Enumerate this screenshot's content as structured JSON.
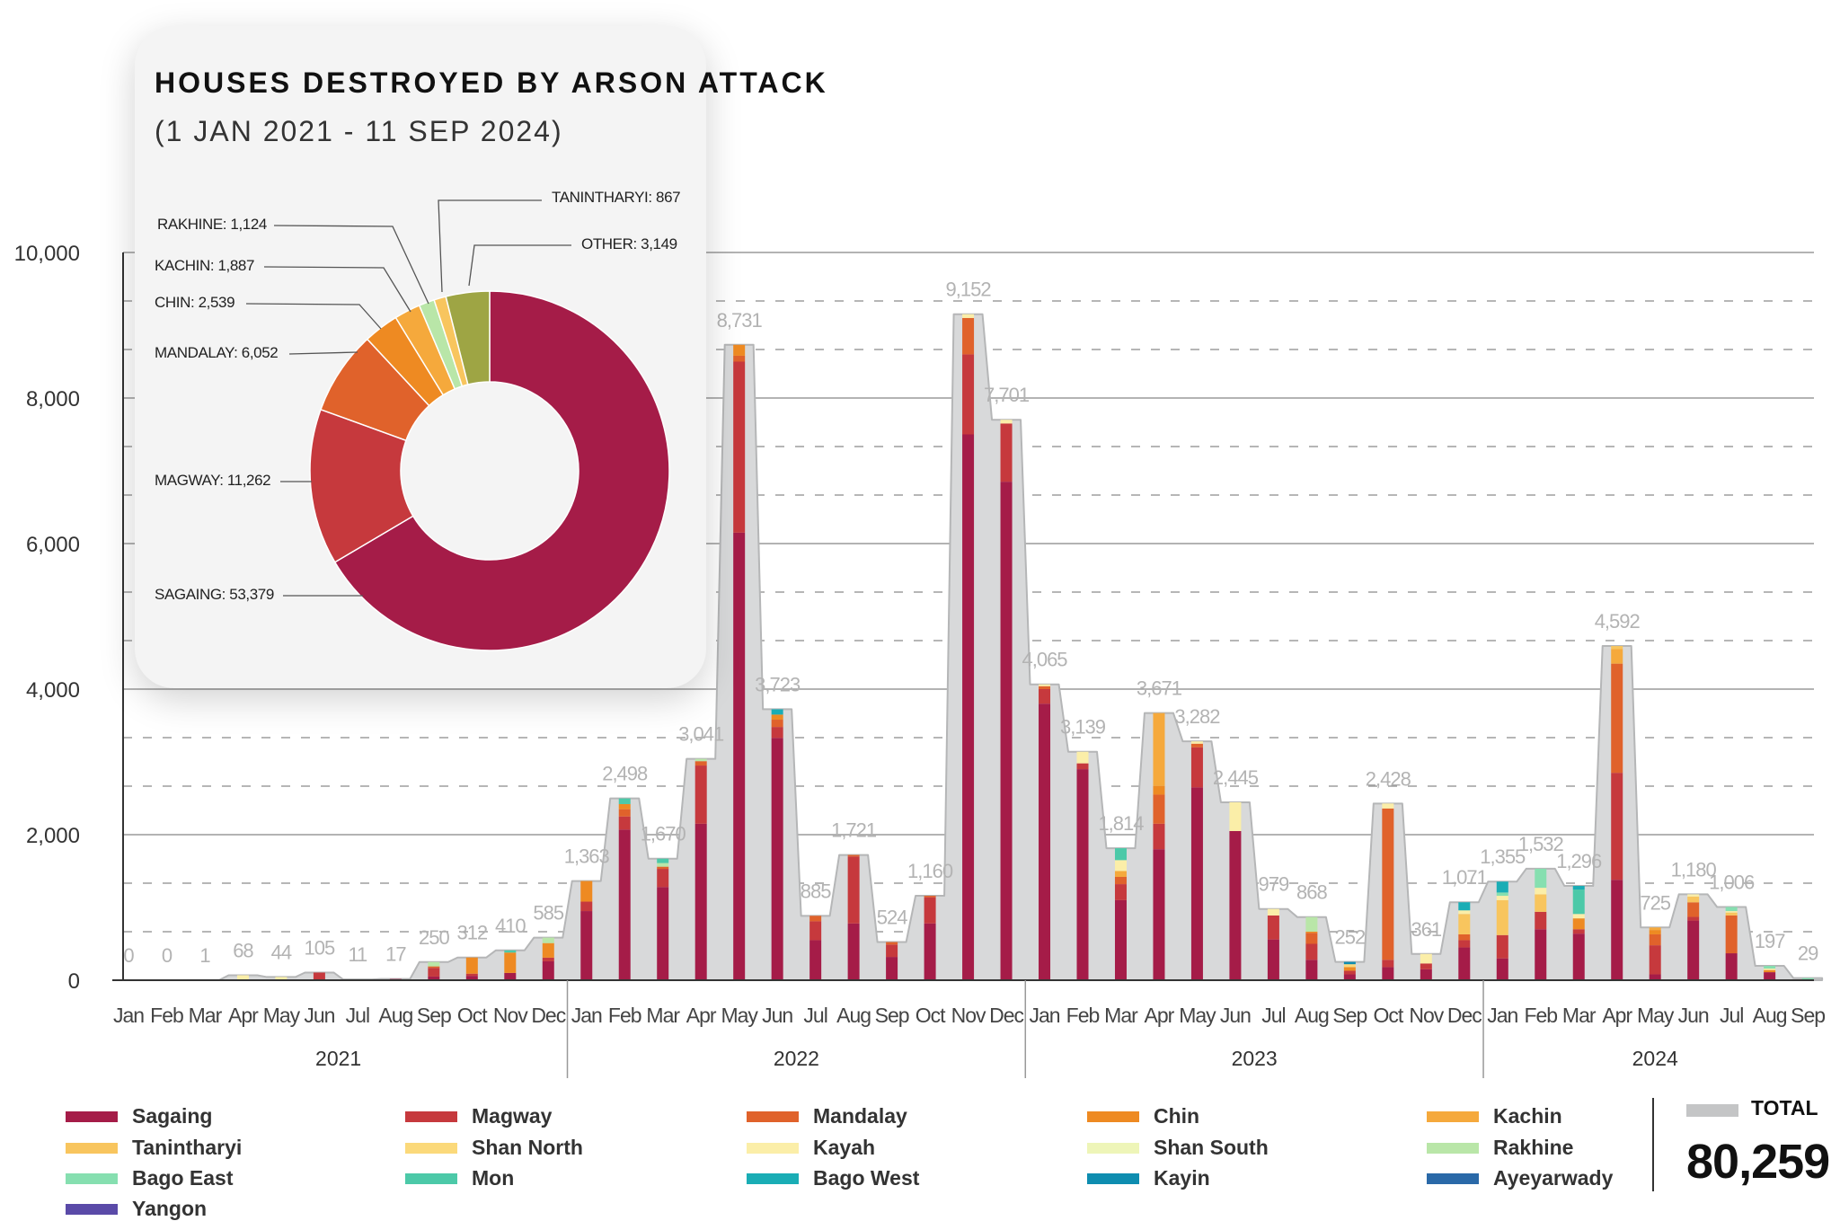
{
  "card": {
    "title": "HOUSES DESTROYED BY ARSON ATTACK",
    "subtitle": "(1 JAN 2021 - 11 SEP 2024)"
  },
  "donut": {
    "type": "pie",
    "slices": [
      {
        "name": "SAGAING",
        "value": 53379,
        "label": "SAGAING: 53,379",
        "color": "#a51c48"
      },
      {
        "name": "MAGWAY",
        "value": 11262,
        "label": "MAGWAY: 11,262",
        "color": "#c6393d"
      },
      {
        "name": "MANDALAY",
        "value": 6052,
        "label": "MANDALAY: 6,052",
        "color": "#e0622b"
      },
      {
        "name": "CHIN",
        "value": 2539,
        "label": "CHIN: 2,539",
        "color": "#ee8a22"
      },
      {
        "name": "KACHIN",
        "value": 1887,
        "label": "KACHIN: 1,887",
        "color": "#f5a93c"
      },
      {
        "name": "RAKHINE",
        "value": 1124,
        "label": "RAKHINE: 1,124",
        "color": "#b9e6a8"
      },
      {
        "name": "TANINTHARYI",
        "value": 867,
        "label": "TANINTHARYI: 867",
        "color": "#f8c55e"
      },
      {
        "name": "OTHER",
        "value": 3149,
        "label": "OTHER: 3,149",
        "color": "#9ea544"
      }
    ]
  },
  "chart_data": {
    "type": "bar",
    "stacked": true,
    "ylim": [
      0,
      10000
    ],
    "yticks": [
      "0",
      "2,000",
      "4,000",
      "6,000",
      "8,000",
      "10,000"
    ],
    "grid": true,
    "years": [
      "2021",
      "2022",
      "2023",
      "2024"
    ],
    "categories": [
      "Jan",
      "Feb",
      "Mar",
      "Apr",
      "May",
      "Jun",
      "Jul",
      "Aug",
      "Sep",
      "Oct",
      "Nov",
      "Dec",
      "Jan",
      "Feb",
      "Mar",
      "Apr",
      "May",
      "Jun",
      "Jul",
      "Aug",
      "Sep",
      "Oct",
      "Nov",
      "Dec",
      "Jan",
      "Feb",
      "Mar",
      "Apr",
      "May",
      "Jun",
      "Jul",
      "Aug",
      "Sep",
      "Oct",
      "Nov",
      "Dec",
      "Jan",
      "Feb",
      "Mar",
      "Apr",
      "May",
      "Jun",
      "Jul",
      "Aug",
      "Sep"
    ],
    "totals": [
      0,
      0,
      1,
      68,
      44,
      105,
      11,
      17,
      250,
      312,
      410,
      585,
      1363,
      2498,
      1670,
      3041,
      8731,
      3723,
      885,
      1721,
      524,
      1160,
      9152,
      7701,
      4065,
      3139,
      1814,
      3671,
      3282,
      2445,
      979,
      868,
      252,
      2428,
      361,
      1071,
      1355,
      1532,
      1296,
      4592,
      725,
      1180,
      1006,
      197,
      29
    ],
    "total_labels": [
      "0",
      "0",
      "1",
      "68",
      "44",
      "105",
      "11",
      "17",
      "250",
      "312",
      "410",
      "585",
      "1,363",
      "2,498",
      "1,670",
      "3,041",
      "8,731",
      "3,723",
      "885",
      "1,721",
      "524",
      "1,160",
      "9,152",
      "7,701",
      "4,065",
      "3,139",
      "1,814",
      "3,671",
      "3,282",
      "2,445",
      "979",
      "868",
      "252",
      "2,428",
      "361",
      "1,071",
      "1,355",
      "1,532",
      "1,296",
      "4,592",
      "725",
      "1,180",
      "1,006",
      "197",
      "29"
    ],
    "series": [
      {
        "name": "Sagaing",
        "color": "#a51c48"
      },
      {
        "name": "Magway",
        "color": "#c6393d"
      },
      {
        "name": "Mandalay",
        "color": "#e0622b"
      },
      {
        "name": "Chin",
        "color": "#ee8a22"
      },
      {
        "name": "Kachin",
        "color": "#f5a93c"
      },
      {
        "name": "Tanintharyi",
        "color": "#f8c55e"
      },
      {
        "name": "Shan North",
        "color": "#fbd97a"
      },
      {
        "name": "Kayah",
        "color": "#fbeea8"
      },
      {
        "name": "Shan South",
        "color": "#eef5b8"
      },
      {
        "name": "Rakhine",
        "color": "#b9e6a8"
      },
      {
        "name": "Bago East",
        "color": "#86dfb0"
      },
      {
        "name": "Mon",
        "color": "#4cc9a8"
      },
      {
        "name": "Bago West",
        "color": "#1aadb5"
      },
      {
        "name": "Kayin",
        "color": "#0e8db0"
      },
      {
        "name": "Ayeyarwady",
        "color": "#2a69a8"
      },
      {
        "name": "Yangon",
        "color": "#5a4aa8"
      }
    ],
    "stacks": [
      {},
      {},
      {
        "Kayah": 1
      },
      {
        "Kayah": 68
      },
      {
        "Kayah": 44
      },
      {
        "Magway": 105
      },
      {
        "Kayah": 11
      },
      {
        "Sagaing": 17
      },
      {
        "Sagaing": 50,
        "Magway": 120,
        "Mandalay": 20,
        "Rakhine": 60
      },
      {
        "Sagaing": 60,
        "Magway": 30,
        "Chin": 222
      },
      {
        "Sagaing": 100,
        "Chin": 280,
        "Mon": 30
      },
      {
        "Sagaing": 260,
        "Magway": 50,
        "Chin": 200,
        "Rakhine": 75
      },
      {
        "Sagaing": 950,
        "Magway": 130,
        "Chin": 283
      },
      {
        "Sagaing": 2070,
        "Magway": 180,
        "Mandalay": 100,
        "Chin": 70,
        "Mon": 78
      },
      {
        "Sagaing": 1280,
        "Magway": 250,
        "Mandalay": 30,
        "Mon": 60,
        "Rakhine": 50
      },
      {
        "Sagaing": 2150,
        "Magway": 800,
        "Mandalay": 60,
        "Rakhine": 31
      },
      {
        "Sagaing": 6150,
        "Magway": 2350,
        "Chin": 150,
        "Mandalay": 81
      },
      {
        "Sagaing": 3330,
        "Magway": 150,
        "Mandalay": 100,
        "Chin": 70,
        "Bago West": 73
      },
      {
        "Sagaing": 550,
        "Magway": 260,
        "Mandalay": 75
      },
      {
        "Sagaing": 780,
        "Magway": 920,
        "Mandalay": 21
      },
      {
        "Sagaing": 320,
        "Magway": 170,
        "Mandalay": 34
      },
      {
        "Sagaing": 780,
        "Magway": 360,
        "Mandalay": 20
      },
      {
        "Sagaing": 7500,
        "Magway": 1100,
        "Mandalay": 500,
        "Kayah": 52
      },
      {
        "Sagaing": 6850,
        "Magway": 800,
        "Kayah": 51
      },
      {
        "Sagaing": 3800,
        "Magway": 200,
        "Mandalay": 40,
        "Kayah": 25
      },
      {
        "Sagaing": 2900,
        "Magway": 80,
        "Kayah": 159
      },
      {
        "Sagaing": 1100,
        "Magway": 220,
        "Mandalay": 100,
        "Kachin": 80,
        "Kayah": 150,
        "Mon": 164
      },
      {
        "Sagaing": 1800,
        "Magway": 350,
        "Mandalay": 400,
        "Chin": 121,
        "Kachin": 1000
      },
      {
        "Sagaing": 2650,
        "Magway": 550,
        "Mandalay": 50,
        "Kayah": 32
      },
      {
        "Sagaing": 2050,
        "Kayah": 395
      },
      {
        "Sagaing": 560,
        "Magway": 330,
        "Kayah": 89
      },
      {
        "Sagaing": 280,
        "Magway": 220,
        "Mandalay": 150,
        "Chin": 18,
        "Rakhine": 200
      },
      {
        "Sagaing": 80,
        "Magway": 50,
        "Chin": 50,
        "Shan North": 40,
        "Kayin": 32
      },
      {
        "Sagaing": 180,
        "Magway": 100,
        "Mandalay": 2080,
        "Kayah": 68
      },
      {
        "Sagaing": 150,
        "Magway": 80,
        "Kayah": 131
      },
      {
        "Sagaing": 450,
        "Magway": 100,
        "Mandalay": 80,
        "Tanintharyi": 280,
        "Kayah": 50,
        "Bago West": 111
      },
      {
        "Sagaing": 300,
        "Magway": 320,
        "Tanintharyi": 480,
        "Kayah": 60,
        "Bago East": 45,
        "Bago West": 150
      },
      {
        "Sagaing": 700,
        "Magway": 240,
        "Tanintharyi": 240,
        "Kayah": 90,
        "Bago East": 262
      },
      {
        "Sagaing": 640,
        "Magway": 60,
        "Chin": 150,
        "Kayah": 60,
        "Mon": 336,
        "Bago West": 50
      },
      {
        "Sagaing": 1380,
        "Magway": 1470,
        "Mandalay": 1500,
        "Kachin": 200,
        "Tanintharyi": 42
      },
      {
        "Sagaing": 80,
        "Magway": 400,
        "Mandalay": 150,
        "Chin": 60,
        "Kachin": 35
      },
      {
        "Sagaing": 820,
        "Magway": 50,
        "Mandalay": 200,
        "Tanintharyi": 80,
        "Kayah": 30
      },
      {
        "Sagaing": 370,
        "Mandalay": 520,
        "Tanintharyi": 40,
        "Kayah": 20,
        "Bago East": 56
      },
      {
        "Sagaing": 110,
        "Chin": 30,
        "Kayah": 20,
        "Bago East": 37
      },
      {
        "Sagaing": 10,
        "Bago East": 19
      }
    ]
  },
  "legend": {
    "total_label": "TOTAL",
    "total_value": "80,259",
    "total_color": "#c4c5c6"
  }
}
